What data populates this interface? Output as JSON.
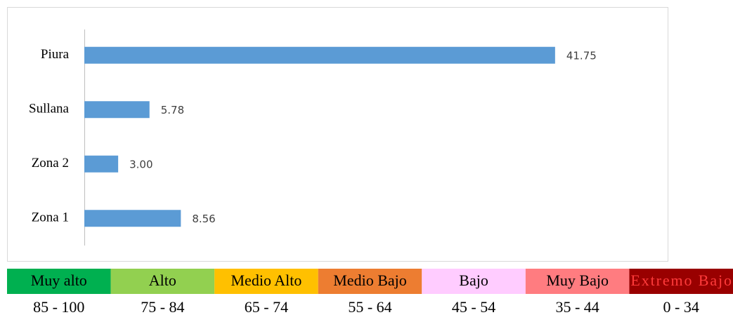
{
  "chart_data": {
    "type": "bar",
    "orientation": "horizontal",
    "categories": [
      "Piura",
      "Sullana",
      "Zona 2",
      "Zona 1"
    ],
    "values": [
      41.75,
      5.78,
      3.0,
      8.56
    ],
    "value_labels": [
      "41.75",
      "5.78",
      "3.00",
      "8.56"
    ],
    "color": "#5b9bd5",
    "xlim": [
      0,
      45
    ]
  },
  "legend_scale": {
    "items": [
      {
        "label": "Muy alto",
        "range": "85 - 100",
        "color": "#00b050"
      },
      {
        "label": "Alto",
        "range": "75 - 84",
        "color": "#92d050"
      },
      {
        "label": "Medio Alto",
        "range": "65 - 74",
        "color": "#ffc000"
      },
      {
        "label": "Medio Bajo",
        "range": "55 - 64",
        "color": "#ed7d31"
      },
      {
        "label": "Bajo",
        "range": "45 - 54",
        "color": "#ffccff"
      },
      {
        "label": "Muy Bajo",
        "range": "35 - 44",
        "color": "#ff7c80"
      },
      {
        "label": "Extremo Bajo",
        "range": "0 - 34",
        "color": "#990000"
      }
    ]
  }
}
